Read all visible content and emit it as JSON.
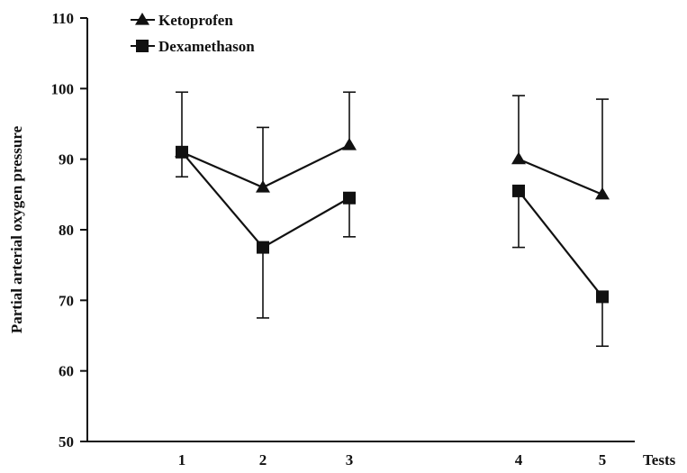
{
  "chart_data": {
    "type": "line",
    "ylabel": "Partial arterial oxygen pressure",
    "xlabel": "Tests",
    "ylim": [
      50,
      110
    ],
    "yticks": [
      50,
      60,
      70,
      80,
      90,
      100,
      110
    ],
    "x_ticks": [
      "1",
      "2",
      "3",
      "4",
      "5"
    ],
    "legend_position": "top-left",
    "grid": false,
    "series": [
      {
        "name": "Ketoprofen",
        "marker": "triangle",
        "segments": [
          [
            {
              "x": 1,
              "y": 91,
              "err_hi": 99.5
            },
            {
              "x": 2,
              "y": 86,
              "err_hi": 94.5
            },
            {
              "x": 3,
              "y": 92,
              "err_hi": 99.5
            }
          ],
          [
            {
              "x": 4,
              "y": 90,
              "err_hi": 99
            },
            {
              "x": 5,
              "y": 85,
              "err_hi": 98.5
            }
          ]
        ]
      },
      {
        "name": "Dexamethason",
        "marker": "square",
        "segments": [
          [
            {
              "x": 1,
              "y": 91,
              "err_lo": 87.5
            },
            {
              "x": 2,
              "y": 77.5,
              "err_lo": 67.5
            },
            {
              "x": 3,
              "y": 84.5,
              "err_lo": 79
            }
          ],
          [
            {
              "x": 4,
              "y": 85.5,
              "err_lo": 77.5
            },
            {
              "x": 5,
              "y": 70.5,
              "err_lo": 63.5
            }
          ]
        ]
      }
    ]
  }
}
